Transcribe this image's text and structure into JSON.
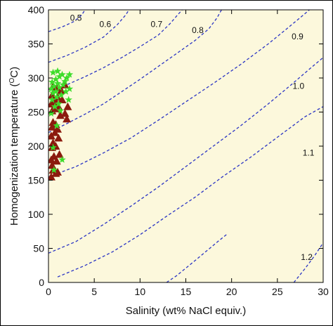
{
  "chart_data": {
    "type": "scatter",
    "xlabel": "Salinity (wt% NaCl equiv.)",
    "ylabel": "Homogenization temperature (",
    "ylabel_super": "O",
    "ylabel_tail": "C)",
    "xlim": [
      0,
      30
    ],
    "ylim": [
      0,
      400
    ],
    "x_ticks": [
      0,
      5,
      10,
      15,
      20,
      25,
      30
    ],
    "y_ticks": [
      0,
      50,
      100,
      150,
      200,
      250,
      300,
      350,
      400
    ],
    "background_color": "#fcf8dc",
    "grid": false,
    "contour_color": "#2b35c4",
    "contours": [
      {
        "label": "0.5",
        "points": [
          [
            0,
            368
          ],
          [
            1.5,
            375
          ],
          [
            2.8,
            383
          ],
          [
            3.6,
            392
          ],
          [
            4.0,
            400
          ]
        ]
      },
      {
        "label": "0.6",
        "points": [
          [
            0,
            323
          ],
          [
            2,
            333
          ],
          [
            4,
            345
          ],
          [
            6,
            360
          ],
          [
            7.5,
            378
          ],
          [
            8.4,
            392
          ],
          [
            8.8,
            400
          ]
        ]
      },
      {
        "label": "0.7",
        "points": [
          [
            0,
            283
          ],
          [
            2,
            290
          ],
          [
            4,
            302
          ],
          [
            6,
            315
          ],
          [
            8,
            330
          ],
          [
            10,
            346
          ],
          [
            12,
            363
          ],
          [
            13.3,
            380
          ],
          [
            14,
            391
          ],
          [
            14.6,
            400
          ]
        ]
      },
      {
        "label": "0.8",
        "points": [
          [
            0,
            220
          ],
          [
            2,
            233
          ],
          [
            4,
            247
          ],
          [
            6,
            262
          ],
          [
            8,
            280
          ],
          [
            10,
            298
          ],
          [
            12,
            317
          ],
          [
            14,
            336
          ],
          [
            16,
            355
          ],
          [
            17.5,
            372
          ],
          [
            18.4,
            388
          ],
          [
            18.9,
            400
          ]
        ]
      },
      {
        "label": "0.9",
        "points": [
          [
            0,
            155
          ],
          [
            3,
            170
          ],
          [
            6,
            190
          ],
          [
            9,
            212
          ],
          [
            12,
            238
          ],
          [
            15,
            265
          ],
          [
            18,
            292
          ],
          [
            21,
            320
          ],
          [
            24,
            350
          ],
          [
            26,
            372
          ],
          [
            27.8,
            392
          ],
          [
            28.5,
            400
          ]
        ]
      },
      {
        "label": "1.0",
        "points": [
          [
            0,
            43
          ],
          [
            3,
            60
          ],
          [
            6,
            85
          ],
          [
            9,
            112
          ],
          [
            12,
            140
          ],
          [
            15,
            170
          ],
          [
            18,
            200
          ],
          [
            21,
            230
          ],
          [
            24,
            262
          ],
          [
            26.5,
            290
          ],
          [
            28.5,
            313
          ],
          [
            30,
            330
          ]
        ]
      },
      {
        "label": "1.1",
        "points": [
          [
            1,
            8
          ],
          [
            4,
            25
          ],
          [
            7,
            45
          ],
          [
            10,
            70
          ],
          [
            13,
            98
          ],
          [
            16,
            125
          ],
          [
            19,
            155
          ],
          [
            22,
            183
          ],
          [
            25,
            213
          ],
          [
            28,
            243
          ],
          [
            30,
            258
          ]
        ]
      },
      {
        "label": "1.2",
        "points": [
          [
            12.9,
            0
          ],
          [
            14,
            10
          ],
          [
            16,
            32
          ],
          [
            18.5,
            60
          ],
          [
            19.6,
            72
          ]
        ]
      },
      {
        "label": "",
        "points": [
          [
            26.8,
            0
          ],
          [
            28,
            20
          ],
          [
            29,
            38
          ],
          [
            30,
            58
          ]
        ]
      }
    ],
    "contour_labels": [
      {
        "text": "0.5",
        "x": 3.0,
        "y": 388
      },
      {
        "text": "0.6",
        "x": 6.2,
        "y": 379
      },
      {
        "text": "0.7",
        "x": 11.8,
        "y": 379
      },
      {
        "text": "0.8",
        "x": 16.3,
        "y": 370
      },
      {
        "text": "0.9",
        "x": 27.2,
        "y": 361
      },
      {
        "text": "1.0",
        "x": 27.3,
        "y": 288
      },
      {
        "text": "1.1",
        "x": 28.4,
        "y": 190
      },
      {
        "text": "1.2",
        "x": 28.2,
        "y": 37
      }
    ],
    "series": [
      {
        "marker": "triangle",
        "color": "#8b1a0e",
        "points": [
          [
            0.3,
            155
          ],
          [
            0.8,
            160
          ],
          [
            0.5,
            165
          ],
          [
            1.0,
            162
          ],
          [
            0.4,
            172
          ],
          [
            0.9,
            178
          ],
          [
            0.3,
            180
          ],
          [
            0.6,
            185
          ],
          [
            1.2,
            188
          ],
          [
            0.4,
            198
          ],
          [
            0.8,
            200
          ],
          [
            0.5,
            205
          ],
          [
            1.1,
            212
          ],
          [
            0.3,
            215
          ],
          [
            0.7,
            220
          ],
          [
            1.0,
            225
          ],
          [
            0.4,
            228
          ],
          [
            0.8,
            232
          ],
          [
            0.5,
            235
          ],
          [
            1.3,
            245
          ],
          [
            2.0,
            240
          ],
          [
            1.8,
            248
          ],
          [
            0.4,
            252
          ],
          [
            0.8,
            255
          ],
          [
            1.1,
            258
          ],
          [
            2.1,
            258
          ],
          [
            0.3,
            262
          ],
          [
            0.7,
            265
          ],
          [
            1.5,
            268
          ],
          [
            0.6,
            270
          ],
          [
            1.0,
            272
          ],
          [
            0.4,
            275
          ],
          [
            1.4,
            282
          ],
          [
            0.9,
            286
          ],
          [
            0.5,
            288
          ],
          [
            1.8,
            290
          ]
        ]
      },
      {
        "marker": "star",
        "color": "#3ddc2a",
        "points": [
          [
            0.6,
            165
          ],
          [
            1.5,
            180
          ],
          [
            0.5,
            198
          ],
          [
            0.9,
            230
          ],
          [
            0.3,
            248
          ],
          [
            1.3,
            252
          ],
          [
            0.7,
            258
          ],
          [
            1.1,
            262
          ],
          [
            2.2,
            268
          ],
          [
            0.4,
            268
          ],
          [
            0.9,
            272
          ],
          [
            1.4,
            275
          ],
          [
            0.5,
            278
          ],
          [
            1.9,
            280
          ],
          [
            0.8,
            280
          ],
          [
            2.3,
            284
          ],
          [
            0.3,
            284
          ],
          [
            1.2,
            286
          ],
          [
            0.6,
            288
          ],
          [
            1.6,
            290
          ],
          [
            1.0,
            292
          ],
          [
            0.4,
            294
          ],
          [
            1.8,
            295
          ],
          [
            0.8,
            298
          ],
          [
            2.0,
            300
          ],
          [
            1.2,
            302
          ],
          [
            2.3,
            305
          ],
          [
            0.5,
            308
          ],
          [
            1.5,
            305
          ],
          [
            1.0,
            310
          ]
        ]
      }
    ]
  }
}
